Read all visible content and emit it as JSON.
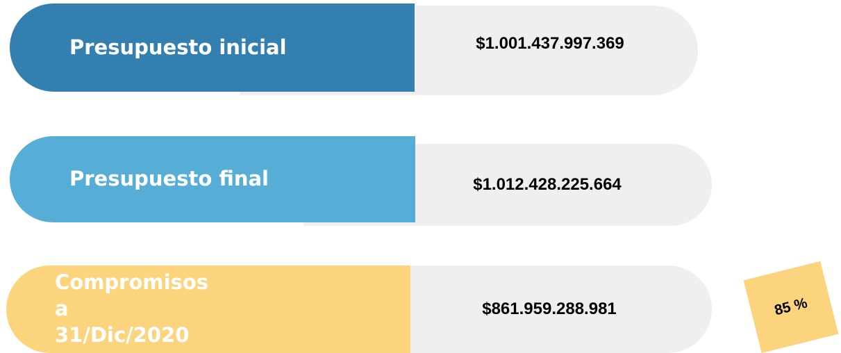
{
  "items": [
    {
      "label": "Presupuesto inicial",
      "value": "$1.001.437.997.369"
    },
    {
      "label": "Presupuesto final",
      "value": "$1.012.428.225.664"
    },
    {
      "label": "Compromisos a 31/Dic/2020",
      "value": "$861.959.288.981"
    }
  ],
  "badge": "85 %"
}
